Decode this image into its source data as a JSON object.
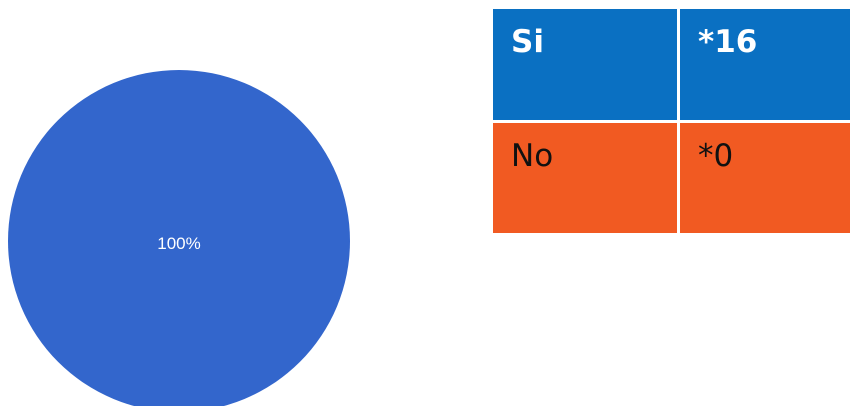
{
  "chart_data": {
    "type": "pie",
    "slices": [
      {
        "label": "Si",
        "value": 16,
        "color": "#3366cc"
      }
    ],
    "slice_label": "100%"
  },
  "legend": {
    "rows": [
      {
        "label": "Si",
        "value": "*16",
        "color": "#0a70c2"
      },
      {
        "label": "No",
        "value": "*0",
        "color": "#f15a22"
      }
    ]
  }
}
